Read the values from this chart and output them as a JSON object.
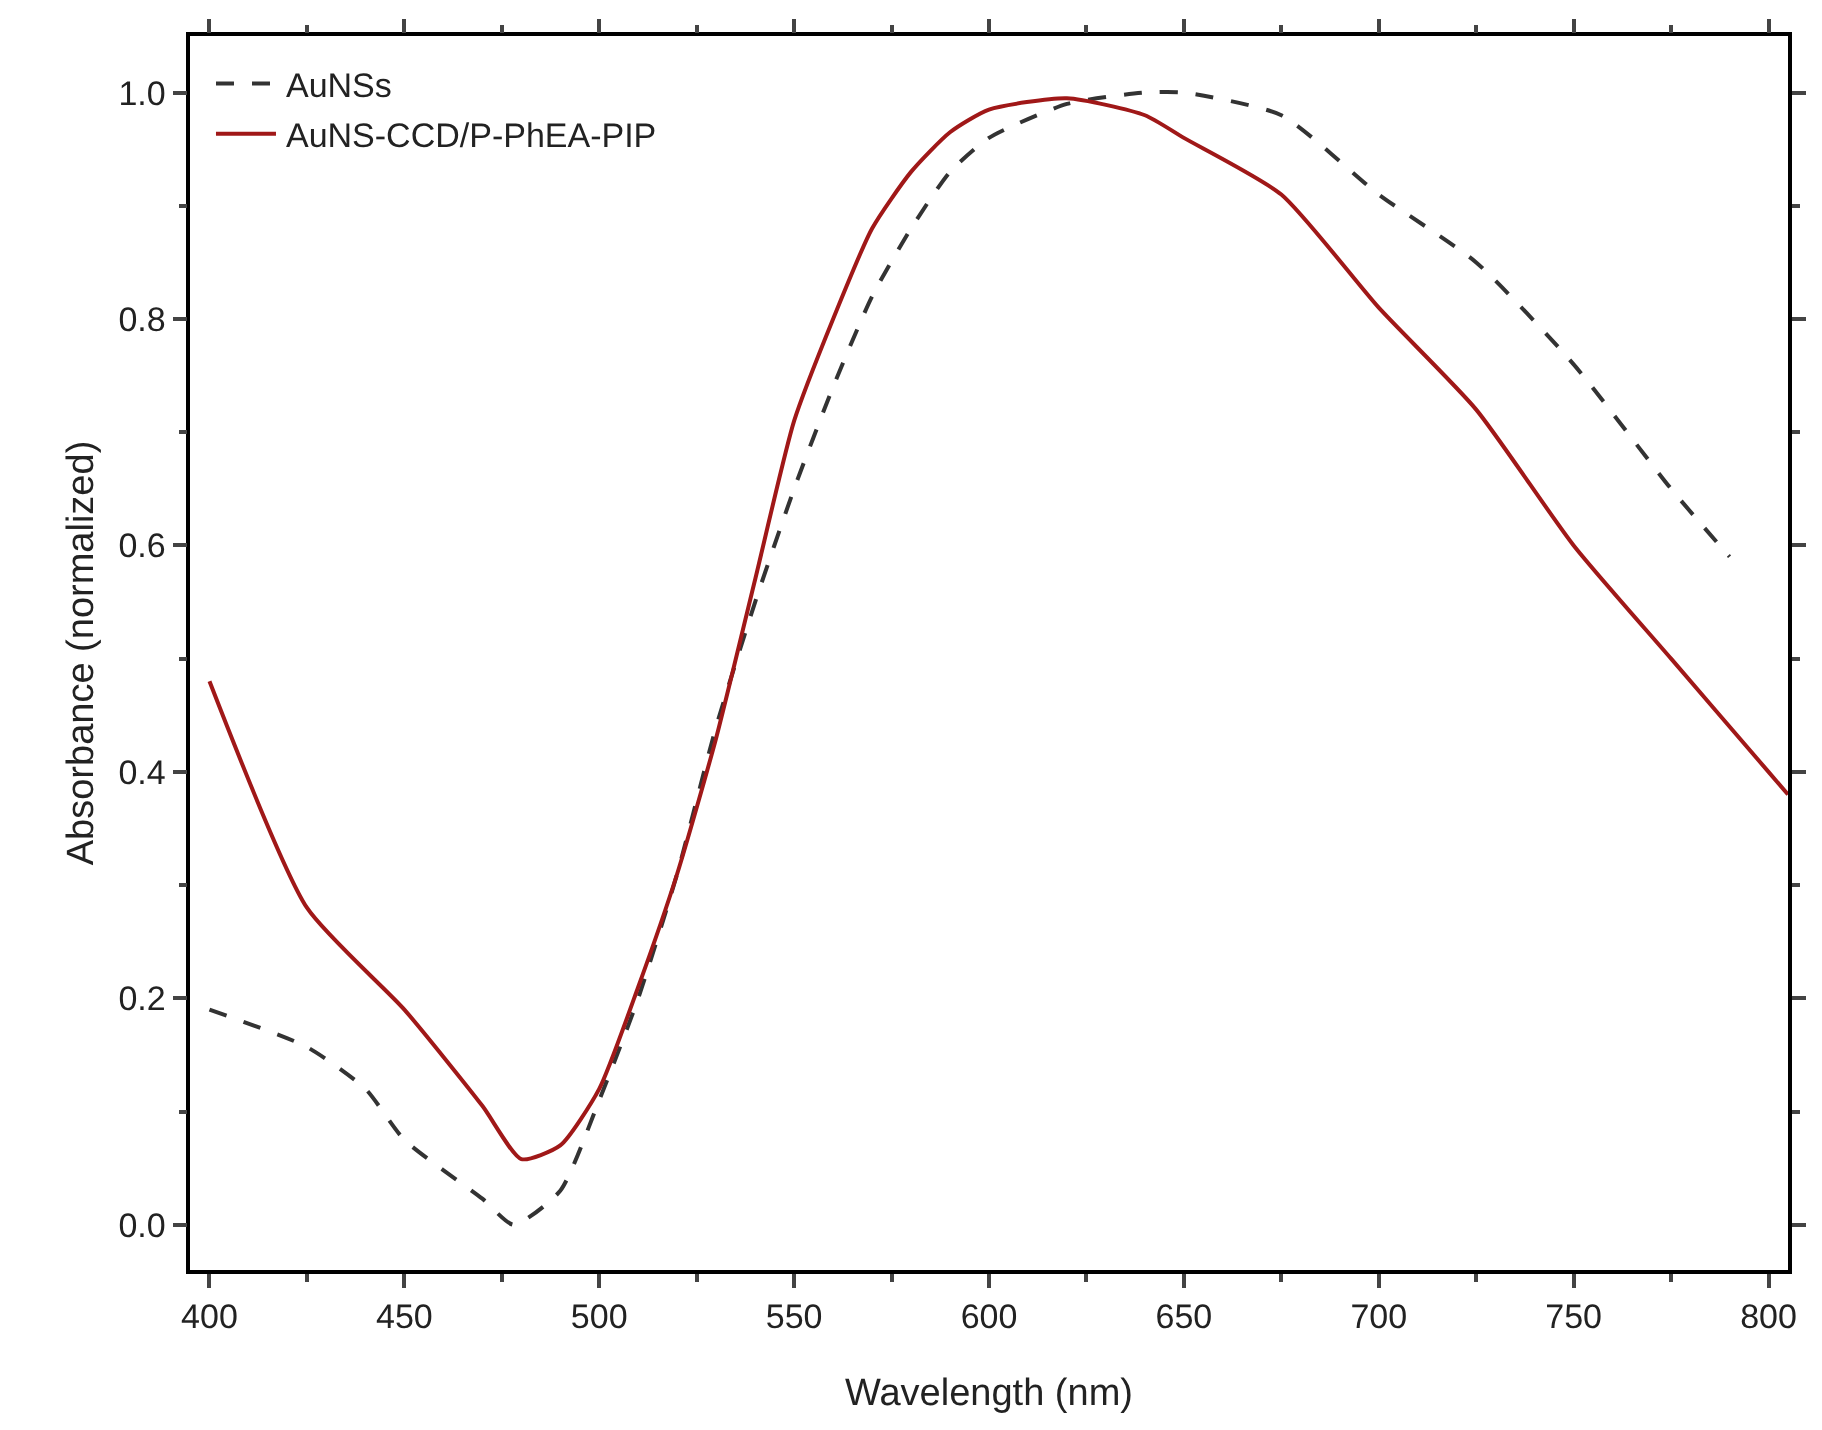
{
  "chart_data": {
    "type": "line",
    "xlabel": "Wavelength (nm)",
    "ylabel": "Absorbance (normalized)",
    "xlim": [
      395,
      805
    ],
    "ylim": [
      -0.04,
      1.05
    ],
    "xticks": [
      400,
      450,
      500,
      550,
      600,
      650,
      700,
      750,
      800
    ],
    "yticks": [
      {
        "value": 0,
        "label": "0.0"
      },
      {
        "value": 0.2,
        "label": "0.2"
      },
      {
        "value": 0.4,
        "label": "0.4"
      },
      {
        "value": 0.6,
        "label": "0.6"
      },
      {
        "value": 0.8,
        "label": "0.8"
      },
      {
        "value": 1,
        "label": "1.0"
      }
    ],
    "grid": false,
    "legend": "top left",
    "marker": "none",
    "series": [
      {
        "name": "AuNSs",
        "color": "#333333",
        "line_style": "dashed",
        "x": [
          400,
          425,
          440,
          450,
          470,
          478,
          490,
          500,
          510,
          520,
          530,
          540,
          550,
          560,
          570,
          580,
          590,
          600,
          620,
          640,
          650,
          675,
          700,
          725,
          750,
          775,
          790
        ],
        "values": [
          0.19,
          0.157,
          0.12,
          0.075,
          0.023,
          0.0,
          0.03,
          0.11,
          0.2,
          0.31,
          0.44,
          0.55,
          0.65,
          0.74,
          0.82,
          0.88,
          0.93,
          0.96,
          0.99,
          1.0,
          1.0,
          0.98,
          0.91,
          0.85,
          0.76,
          0.65,
          0.59
        ]
      },
      {
        "name": "AuNS-CCD/P-PhEA-PIP",
        "color": "#a01818",
        "line_style": "solid",
        "x": [
          400,
          425,
          450,
          470,
          480,
          490,
          500,
          510,
          520,
          530,
          540,
          550,
          560,
          570,
          580,
          590,
          600,
          620,
          640,
          650,
          675,
          700,
          725,
          750,
          775,
          800,
          805
        ],
        "values": [
          0.48,
          0.28,
          0.19,
          0.105,
          0.058,
          0.07,
          0.12,
          0.21,
          0.31,
          0.43,
          0.57,
          0.71,
          0.8,
          0.88,
          0.93,
          0.965,
          0.985,
          0.995,
          0.98,
          0.96,
          0.91,
          0.81,
          0.72,
          0.6,
          0.5,
          0.4,
          0.38
        ]
      }
    ]
  }
}
